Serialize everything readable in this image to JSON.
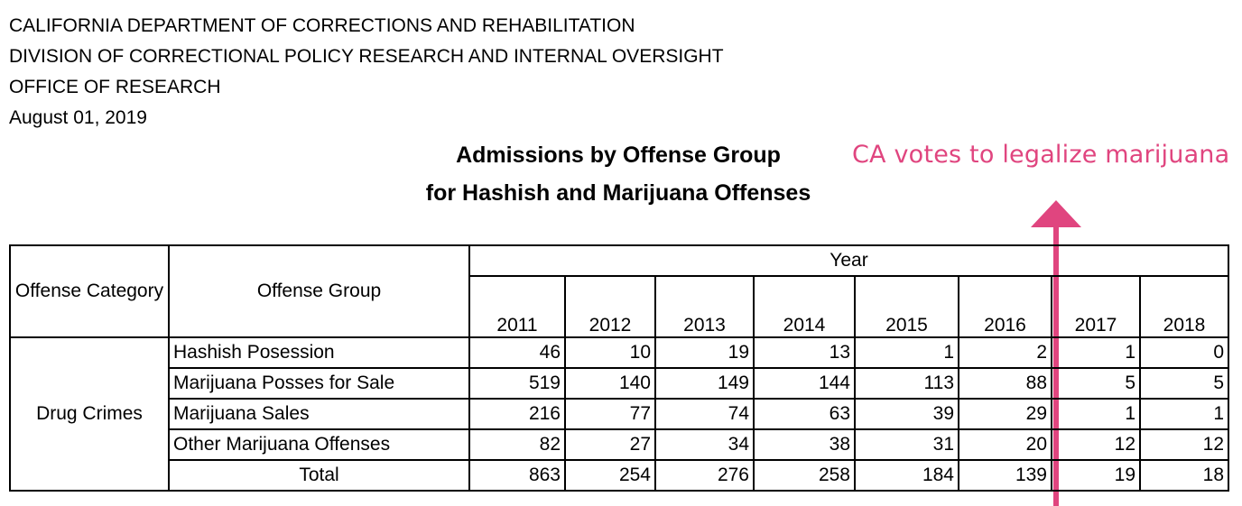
{
  "header": {
    "lines": [
      "CALIFORNIA DEPARTMENT OF CORRECTIONS AND REHABILITATION",
      "DIVISION OF CORRECTIONAL POLICY RESEARCH AND INTERNAL OVERSIGHT",
      "OFFICE OF RESEARCH",
      "August 01, 2019"
    ]
  },
  "title": {
    "line1": "Admissions by Offense Group",
    "line2": "for Hashish and Marijuana Offenses"
  },
  "annotation": {
    "text": "CA votes to legalize marijuana",
    "color": "#e0457f"
  },
  "table": {
    "col_offense_category": "Offense Category",
    "col_offense_group": "Offense Group",
    "year_label": "Year",
    "years": [
      "2011",
      "2012",
      "2013",
      "2014",
      "2015",
      "2016",
      "2017",
      "2018"
    ],
    "category": "Drug Crimes",
    "rows": [
      {
        "group": "Hashish Posession",
        "values": [
          "46",
          "10",
          "19",
          "13",
          "1",
          "2",
          "1",
          "0"
        ]
      },
      {
        "group": "Marijuana Posses for Sale",
        "values": [
          "519",
          "140",
          "149",
          "144",
          "113",
          "88",
          "5",
          "5"
        ]
      },
      {
        "group": "Marijuana Sales",
        "values": [
          "216",
          "77",
          "74",
          "63",
          "39",
          "29",
          "1",
          "1"
        ]
      },
      {
        "group": "Other Marijuana Offenses",
        "values": [
          "82",
          "27",
          "34",
          "38",
          "31",
          "20",
          "12",
          "12"
        ]
      }
    ],
    "total": {
      "label": "Total",
      "values": [
        "863",
        "254",
        "276",
        "258",
        "184",
        "139",
        "19",
        "18"
      ]
    }
  }
}
